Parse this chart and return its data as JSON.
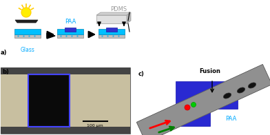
{
  "fig_width": 3.92,
  "fig_height": 1.96,
  "dpi": 100,
  "bg_color": "#ffffff",
  "panel_a_label": "a)",
  "panel_b_label": "b)",
  "panel_c_label": "c)",
  "glass_color": "#00bfff",
  "glass_dark": "#0099cc",
  "pdms_color": "#c8c8c8",
  "pdms_dark": "#a0a0a0",
  "paa_color": "#3333cc",
  "paa_light": "#6666ff",
  "sun_color": "#ffee00",
  "arrow_color": "#111111",
  "label_glass": "Glass",
  "label_paa": "PAA",
  "label_pdms": "PDMS",
  "label_paa_c": "PAA",
  "label_fusion": "Fusion",
  "scale_bar_label": "100 μm",
  "glass_label_color": "#00aaff",
  "pdms_label_color": "#999999",
  "paa_label_color": "#00aaff",
  "fusion_color": "#111111"
}
